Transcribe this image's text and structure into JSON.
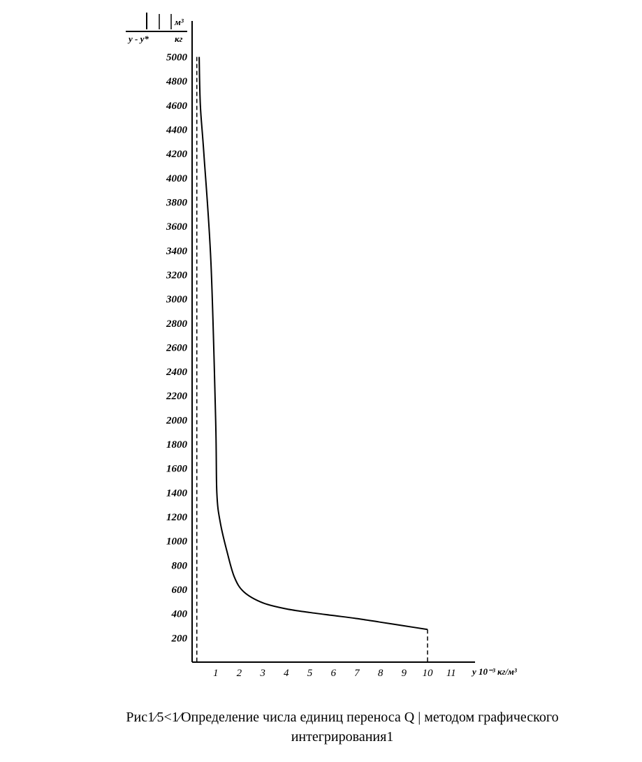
{
  "caption": {
    "line1": "Рис1⁄5<1⁄Определение числа единиц переноса Q | методом графического",
    "line2": "интегрирования1"
  },
  "chart_data": {
    "type": "line",
    "ylabel_top": "м³",
    "ylabel_bottom": "кг",
    "ylabel_prefix": "y - y*",
    "xlabel": "y 10⁻³ кг/м³",
    "y_ticks": [
      5000,
      4800,
      4600,
      4400,
      4200,
      4000,
      3800,
      3600,
      3400,
      3200,
      3000,
      2800,
      2600,
      2400,
      2200,
      2000,
      1800,
      1600,
      1400,
      1200,
      1000,
      800,
      600,
      400,
      200
    ],
    "x_ticks": [
      1,
      2,
      3,
      4,
      5,
      6,
      7,
      8,
      9,
      10,
      11
    ],
    "xlim": [
      0,
      12
    ],
    "ylim": [
      0,
      5200
    ],
    "series": [
      {
        "x": [
          0.3,
          0.35,
          0.5,
          0.8,
          1.0,
          1.05,
          1.2,
          1.5,
          1.8,
          2.2,
          3.0,
          4.0,
          5.0,
          6.0,
          7.0,
          8.0,
          9.0,
          10.0
        ],
        "y": [
          5000,
          4600,
          4200,
          3300,
          2000,
          1400,
          1150,
          900,
          700,
          580,
          490,
          440,
          410,
          385,
          360,
          330,
          300,
          270
        ]
      }
    ],
    "vertical_markers_x": [
      0.2,
      10.0
    ]
  }
}
